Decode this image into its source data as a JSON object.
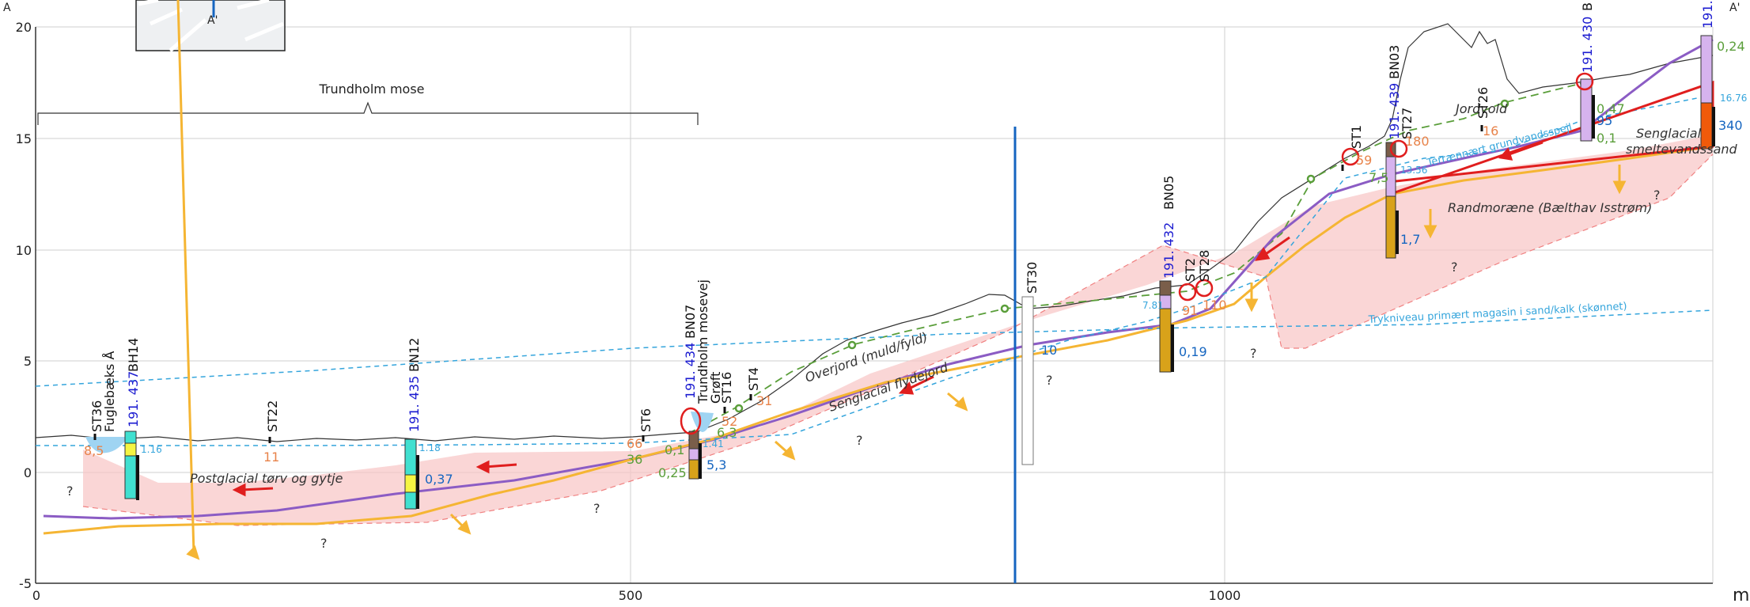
{
  "corner_labels": {
    "left": "A",
    "right": "A'",
    "inset": "A'"
  },
  "x_unit": "m",
  "axis": {
    "y_ticks": [
      "20",
      "15",
      "10",
      "5",
      "0",
      "-5"
    ],
    "x_ticks": [
      "0",
      "500",
      "1000"
    ]
  },
  "region_label": "Trundholm mose",
  "units": {
    "postglacial": "Postglacial tørv og gytje",
    "overjord": "Overjord (muld/fyld)",
    "flydejord": "Senglacial flydejord",
    "smeltevand_1": "Senglacial",
    "smeltevand_2": "smeltevandssand",
    "randmoraene": "Randmoræne (Bælthav Isstrøm)",
    "jordvold": "Jordvold",
    "terraen_gv": "Terrænnært grundvandsspejl",
    "trykniveau": "Trykniveau primært magasin i sand/kalk (skønnet)"
  },
  "borehole_labels": {
    "st36": "ST36",
    "fuglebaek": "Fuglebæks Å",
    "bh14_id": "191. 437",
    "bh14": "BH14",
    "st22": "ST22",
    "bh12_id": "191. 435",
    "bh12": "BN12",
    "st6": "ST6",
    "bh07_id": "191. 434",
    "bh07": "BN07",
    "mosevej": "Trundholm mosevej",
    "groft": "Grøft",
    "st16": "ST16",
    "st4": "ST4",
    "st30": "ST30",
    "bh05_id": "191. 432",
    "bh05": "BN05",
    "st2": "ST2",
    "st28": "ST28",
    "st1": "ST1",
    "bh03_id": "191. 439",
    "bh03": "BN03",
    "st27": "ST27",
    "st26": "ST26",
    "bh_top_id": "191. 430",
    "bh_top": "B",
    "bh_edge_id": "191."
  },
  "values": {
    "v8_5": "8,5",
    "v1_16": "1.16",
    "v11": "11",
    "v1_18": "1.18",
    "v0_37": "0,37",
    "v66": "66",
    "v36": "36",
    "v0_1a": "0,1",
    "v0_25": "0,25",
    "v1_41": "1.41",
    "v6_3": "6,3",
    "v5_3": "5,3",
    "v52": "52",
    "v31": "31",
    "v10": "10",
    "v7_81": "7.81",
    "v91": "91",
    "v110": "110",
    "v0_19": "0,19",
    "v59": "59",
    "v180": "180",
    "v7_5": "7,5",
    "v13_56": "13.56",
    "v1_7": "1,7",
    "v16": "16",
    "v0_47": "0,47",
    "v95": "95",
    "v0_1b": "0,1",
    "v0_24": "0,24",
    "v16_76": "16.76",
    "v340": "340"
  },
  "question": "?"
}
